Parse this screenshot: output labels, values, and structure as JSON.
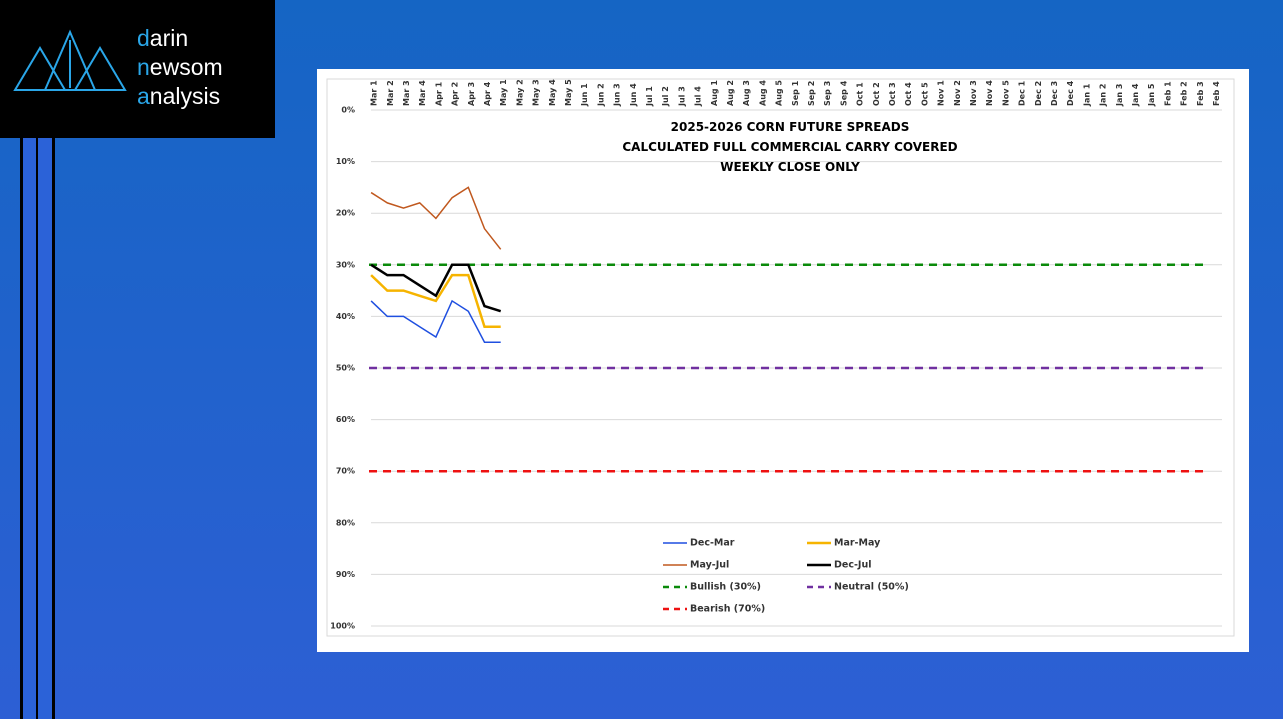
{
  "brand": {
    "line1": "darin",
    "line2": "newsom",
    "line3": "analysis"
  },
  "chart_data": {
    "type": "line",
    "title": [
      "2025-2026 CORN FUTURE SPREADS",
      "CALCULATED FULL COMMERCIAL CARRY COVERED",
      "WEEKLY CLOSE ONLY"
    ],
    "categories": [
      "Mar 1",
      "Mar 2",
      "Mar 3",
      "Mar 4",
      "Apr 1",
      "Apr 2",
      "Apr 3",
      "Apr 4",
      "May 1",
      "May 2",
      "May 3",
      "May 4",
      "May 5",
      "Jun 1",
      "Jun 2",
      "Jun 3",
      "Jun 4",
      "Jul 1",
      "Jul 2",
      "Jul 3",
      "Jul 4",
      "Aug 1",
      "Aug 2",
      "Aug 3",
      "Aug 4",
      "Aug 5",
      "Sep 1",
      "Sep 2",
      "Sep 3",
      "Sep 4",
      "Oct 1",
      "Oct 2",
      "Oct 3",
      "Oct 4",
      "Oct 5",
      "Nov 1",
      "Nov 2",
      "Nov 3",
      "Nov 4",
      "Nov 5",
      "Dec 1",
      "Dec 2",
      "Dec 3",
      "Dec 4",
      "Jan 1",
      "Jan 2",
      "Jan 3",
      "Jan 4",
      "Jan 5",
      "Feb 1",
      "Feb 2",
      "Feb 3",
      "Feb 4"
    ],
    "series": [
      {
        "name": "Dec-Mar",
        "color": "#1f4fe0",
        "width": 1.5,
        "values": [
          37,
          40,
          40,
          42,
          44,
          37,
          39,
          45,
          45,
          null,
          null,
          null,
          null,
          null,
          null,
          null,
          null,
          null,
          null,
          null,
          null,
          null,
          null,
          null,
          null,
          null,
          null,
          null,
          null,
          null,
          null,
          null,
          null,
          null,
          null,
          null,
          null,
          null,
          null,
          null,
          null,
          null,
          null,
          null,
          null,
          null,
          null,
          null,
          null,
          null,
          null,
          null,
          null
        ]
      },
      {
        "name": "Mar-May",
        "color": "#f6b400",
        "width": 2.5,
        "values": [
          32,
          35,
          35,
          36,
          37,
          32,
          32,
          42,
          42,
          null,
          null,
          null,
          null,
          null,
          null,
          null,
          null,
          null,
          null,
          null,
          null,
          null,
          null,
          null,
          null,
          null,
          null,
          null,
          null,
          null,
          null,
          null,
          null,
          null,
          null,
          null,
          null,
          null,
          null,
          null,
          null,
          null,
          null,
          null,
          null,
          null,
          null,
          null,
          null,
          null,
          null,
          null,
          null
        ]
      },
      {
        "name": "May-Jul",
        "color": "#c0581e",
        "width": 1.5,
        "values": [
          16,
          18,
          19,
          18,
          21,
          17,
          15,
          23,
          27,
          null,
          null,
          null,
          null,
          null,
          null,
          null,
          null,
          null,
          null,
          null,
          null,
          null,
          null,
          null,
          null,
          null,
          null,
          null,
          null,
          null,
          null,
          null,
          null,
          null,
          null,
          null,
          null,
          null,
          null,
          null,
          null,
          null,
          null,
          null,
          null,
          null,
          null,
          null,
          null,
          null,
          null,
          null,
          null
        ]
      },
      {
        "name": "Dec-Jul",
        "color": "#000000",
        "width": 2.5,
        "values": [
          30,
          32,
          32,
          34,
          36,
          30,
          30,
          38,
          39,
          null,
          null,
          null,
          null,
          null,
          null,
          null,
          null,
          null,
          null,
          null,
          null,
          null,
          null,
          null,
          null,
          null,
          null,
          null,
          null,
          null,
          null,
          null,
          null,
          null,
          null,
          null,
          null,
          null,
          null,
          null,
          null,
          null,
          null,
          null,
          null,
          null,
          null,
          null,
          null,
          null,
          null,
          null,
          null
        ]
      }
    ],
    "reference_lines": [
      {
        "name": "Bullish (30%)",
        "value": 30,
        "color": "#0a8a0a"
      },
      {
        "name": "Neutral (50%)",
        "value": 50,
        "color": "#7030a0"
      },
      {
        "name": "Bearish (70%)",
        "value": 70,
        "color": "#ee1111"
      }
    ],
    "ylim": [
      0,
      100
    ],
    "y_inverted": true,
    "yticks": [
      {
        "value": 0,
        "label": "0%"
      },
      {
        "value": 10,
        "label": "10%"
      },
      {
        "value": 20,
        "label": "20%"
      },
      {
        "value": 30,
        "label": "30%"
      },
      {
        "value": 40,
        "label": "40%"
      },
      {
        "value": 50,
        "label": "50%"
      },
      {
        "value": 60,
        "label": "60%"
      },
      {
        "value": 70,
        "label": "70%"
      },
      {
        "value": 80,
        "label": "80%"
      },
      {
        "value": 90,
        "label": "90%"
      },
      {
        "value": 100,
        "label": "100%"
      }
    ],
    "grid": true,
    "legend": "bottom"
  }
}
